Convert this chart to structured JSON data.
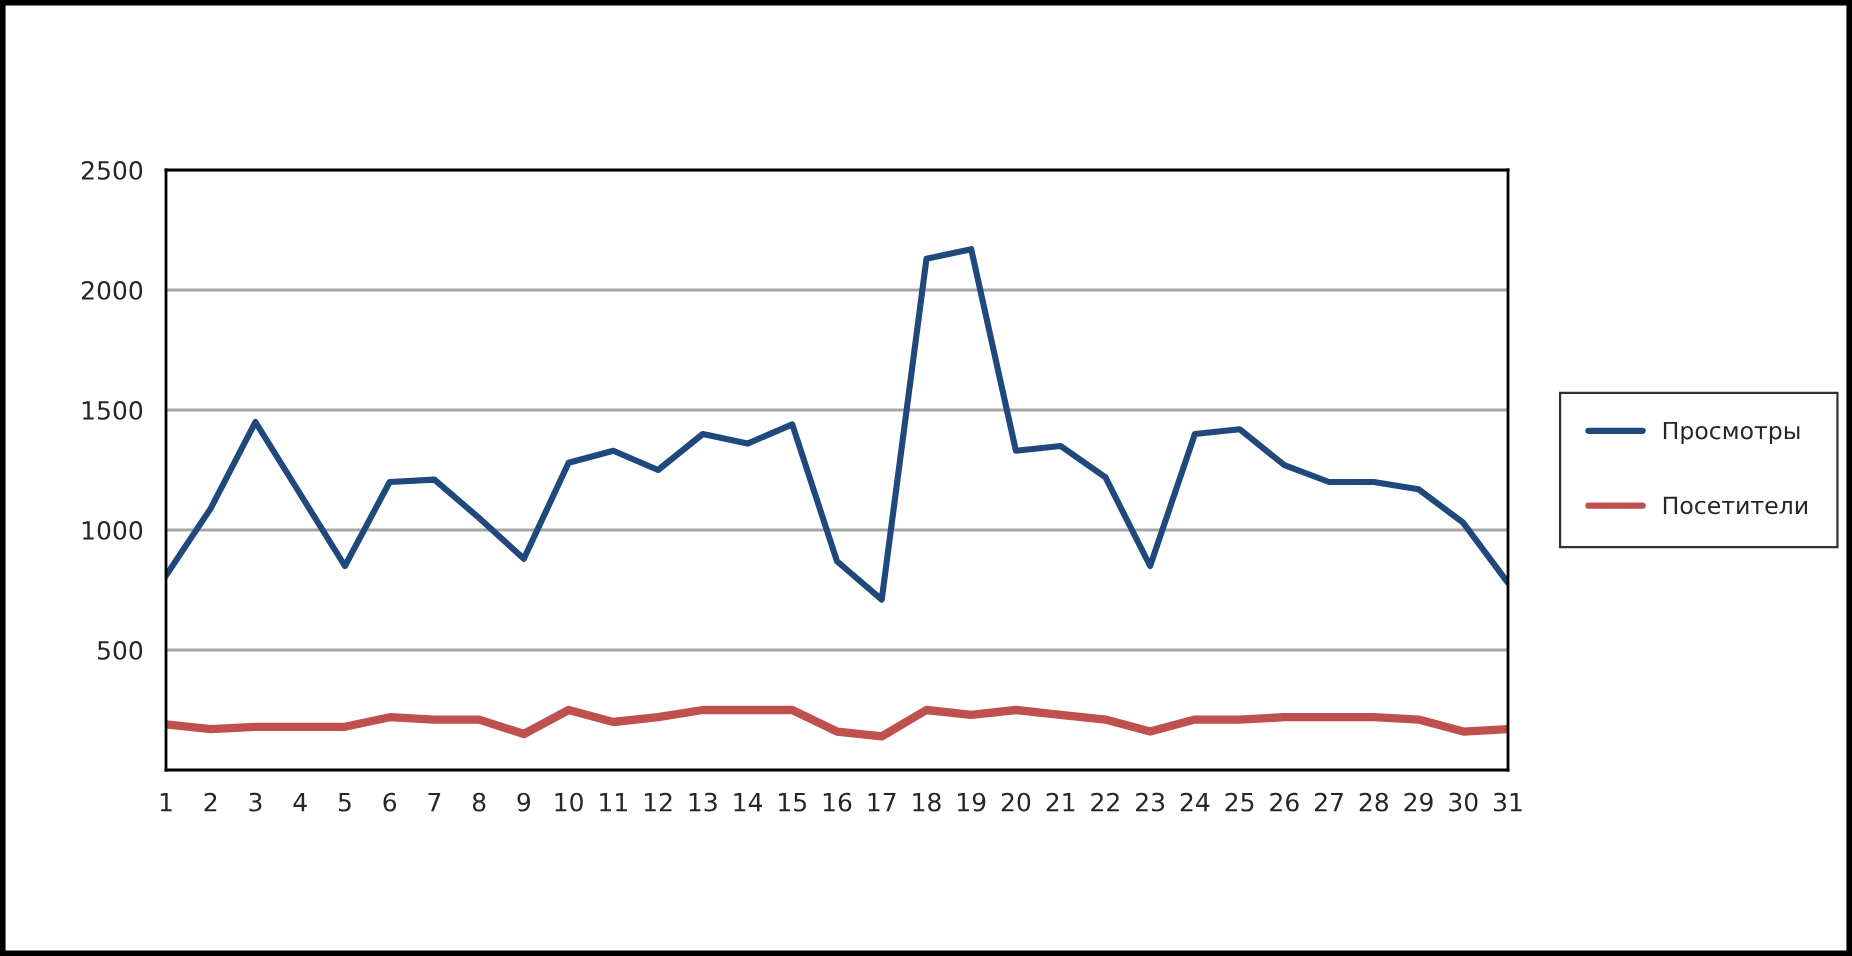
{
  "chart_data": {
    "type": "line",
    "categories": [
      "1",
      "2",
      "3",
      "4",
      "5",
      "6",
      "7",
      "8",
      "9",
      "10",
      "11",
      "12",
      "13",
      "14",
      "15",
      "16",
      "17",
      "18",
      "19",
      "20",
      "21",
      "22",
      "23",
      "24",
      "25",
      "26",
      "27",
      "28",
      "29",
      "30",
      "31"
    ],
    "series": [
      {
        "name": "Просмотры",
        "color": "#1f497d",
        "values": [
          810,
          1090,
          1450,
          1150,
          850,
          1200,
          1210,
          1050,
          880,
          1280,
          1330,
          1250,
          1400,
          1360,
          1440,
          870,
          710,
          2130,
          2170,
          1330,
          1350,
          1220,
          850,
          1400,
          1420,
          1270,
          1200,
          1200,
          1170,
          1030,
          780
        ]
      },
      {
        "name": "Посетители",
        "color": "#c0504d",
        "values": [
          190,
          170,
          180,
          180,
          180,
          220,
          210,
          210,
          150,
          250,
          200,
          220,
          250,
          250,
          250,
          160,
          140,
          250,
          230,
          250,
          230,
          210,
          160,
          210,
          210,
          220,
          220,
          220,
          210,
          160,
          170
        ]
      }
    ],
    "ylim": [
      0,
      2500
    ],
    "yticks": [
      500,
      1000,
      1500,
      2000,
      2500
    ],
    "grid": "y",
    "legend": "right",
    "marker": "none",
    "line_style": "solid"
  }
}
